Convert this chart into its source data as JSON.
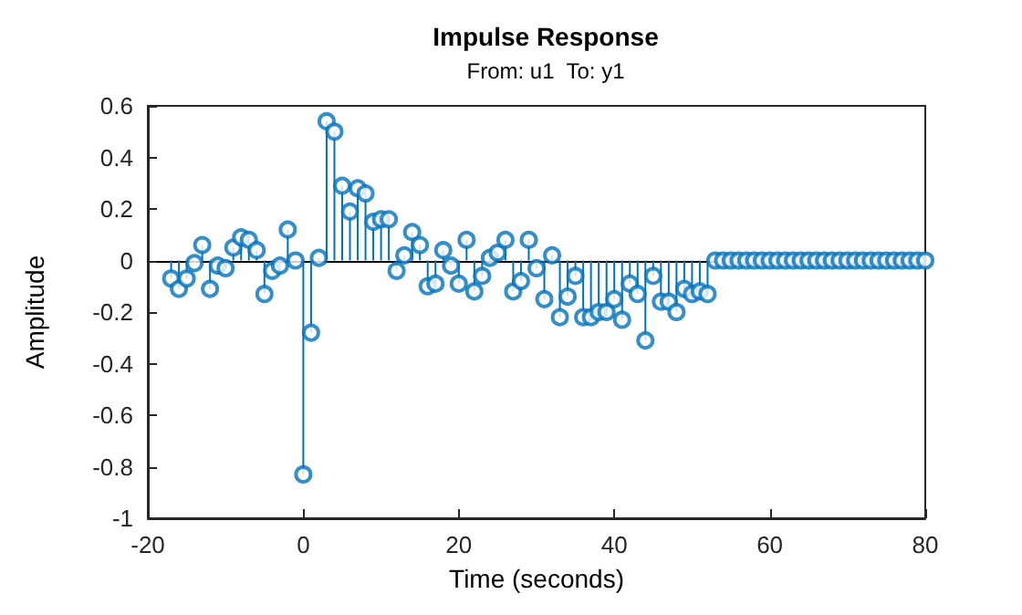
{
  "chart_data": {
    "type": "lollipop",
    "title": "Impulse Response",
    "subtitle": "From: u1  To: y1",
    "xlabel": "Time (seconds)",
    "ylabel": "Amplitude",
    "x": [
      -17,
      -16,
      -15,
      -14,
      -13,
      -12,
      -11,
      -10,
      -9,
      -8,
      -7,
      -6,
      -5,
      -4,
      -3,
      -2,
      -1,
      0,
      1,
      2,
      3,
      4,
      5,
      6,
      7,
      8,
      9,
      10,
      11,
      12,
      13,
      14,
      15,
      16,
      17,
      18,
      19,
      20,
      21,
      22,
      23,
      24,
      25,
      26,
      27,
      28,
      29,
      30,
      31,
      32,
      33,
      34,
      35,
      36,
      37,
      38,
      39,
      40,
      41,
      42,
      43,
      44,
      45,
      46,
      47,
      48,
      49,
      50,
      51,
      52,
      53,
      54,
      55,
      56,
      57,
      58,
      59,
      60,
      61,
      62,
      63,
      64,
      65,
      66,
      67,
      68,
      69,
      70,
      71,
      72,
      73,
      74,
      75,
      76,
      77,
      78,
      79,
      80
    ],
    "values": [
      -0.07,
      -0.11,
      -0.07,
      -0.01,
      0.06,
      -0.11,
      -0.02,
      -0.03,
      0.05,
      0.09,
      0.08,
      0.04,
      -0.13,
      -0.04,
      -0.02,
      0.12,
      0,
      -0.83,
      -0.28,
      0.01,
      0.54,
      0.5,
      0.29,
      0.19,
      0.28,
      0.26,
      0.15,
      0.16,
      0.16,
      -0.04,
      0.02,
      0.11,
      0.06,
      -0.1,
      -0.09,
      0.04,
      -0.02,
      -0.09,
      0.08,
      -0.12,
      -0.06,
      0.01,
      0.03,
      0.08,
      -0.12,
      -0.08,
      0.08,
      -0.03,
      -0.15,
      0.02,
      -0.22,
      -0.14,
      -0.06,
      -0.22,
      -0.22,
      -0.2,
      -0.2,
      -0.15,
      -0.23,
      -0.09,
      -0.13,
      -0.31,
      -0.06,
      -0.16,
      -0.16,
      -0.2,
      -0.11,
      -0.13,
      -0.12,
      -0.13,
      0,
      0,
      0,
      0,
      0,
      0,
      0,
      0,
      0,
      0,
      0,
      0,
      0,
      0,
      0,
      0,
      0,
      0,
      0,
      0,
      0,
      0,
      0,
      0,
      0,
      0,
      0,
      0
    ],
    "color": "#0072bd",
    "marker": "circle",
    "xlim": [
      -20,
      80
    ],
    "xticks": [
      -20,
      0,
      20,
      40,
      60,
      80
    ],
    "ylim": [
      -1,
      0.6
    ],
    "yticks": [
      -1,
      -0.8,
      -0.6,
      -0.4,
      -0.2,
      0,
      0.2,
      0.4,
      0.6
    ]
  }
}
